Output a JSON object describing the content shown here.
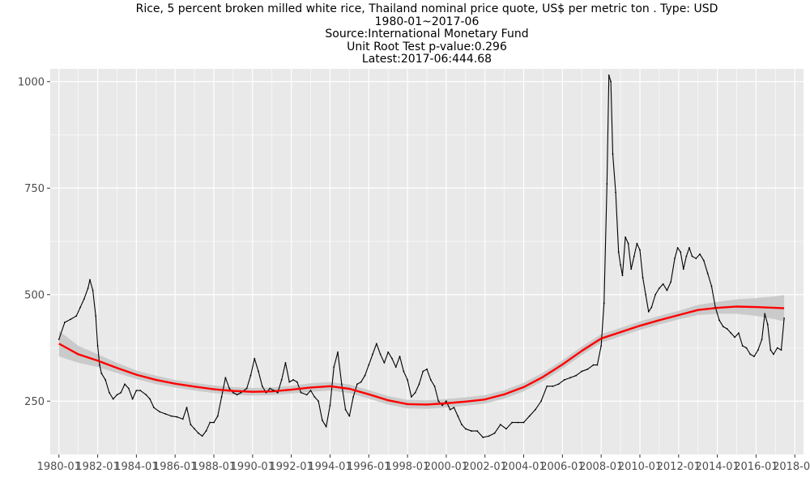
{
  "titles": {
    "line1": "Rice, 5 percent broken milled white rice, Thailand nominal price quote, US$ per metric ton . Type: USD",
    "line2": "1980-01~2017-06",
    "line3": "Source:International Monetary Fund",
    "line4": "Unit Root Test p-value:0.296",
    "line5": "Latest:2017-06:444.68"
  },
  "colors": {
    "panel": "#e9e9e9",
    "grid_major": "#ffffff",
    "series": "#000000",
    "trend": "#ff0000",
    "band": "#c4c4c4"
  },
  "chart_data": {
    "type": "line",
    "title": "Rice, 5 percent broken milled white rice, Thailand nominal price quote, US$ per metric ton . Type: USD",
    "xlabel": "",
    "ylabel": "",
    "xlim": [
      1979.55,
      2018.45
    ],
    "ylim": [
      125,
      1030
    ],
    "grid": true,
    "legend": "none",
    "x_ticks": [
      1980,
      1982,
      1984,
      1986,
      1988,
      1990,
      1992,
      1994,
      1996,
      1998,
      2000,
      2002,
      2004,
      2006,
      2008,
      2010,
      2012,
      2014,
      2016,
      2018
    ],
    "x_tick_labels": [
      "1980-01",
      "1982-01",
      "1984-01",
      "1986-01",
      "1988-01",
      "1990-01",
      "1992-01",
      "1994-01",
      "1996-01",
      "1998-01",
      "2000-01",
      "2002-01",
      "2004-01",
      "2006-01",
      "2008-01",
      "2010-01",
      "2012-01",
      "2014-01",
      "2016-01",
      "2018-01"
    ],
    "y_ticks": [
      250,
      500,
      750,
      1000
    ],
    "y_tick_labels": [
      "250",
      "500",
      "750",
      "1000"
    ],
    "series": [
      {
        "type": "line",
        "values": [
          [
            1980.0,
            395
          ],
          [
            1980.3,
            435
          ],
          [
            1980.6,
            442
          ],
          [
            1980.9,
            450
          ],
          [
            1981.1,
            470
          ],
          [
            1981.3,
            490
          ],
          [
            1981.5,
            515
          ],
          [
            1981.6,
            535
          ],
          [
            1981.75,
            510
          ],
          [
            1981.9,
            450
          ],
          [
            1982.0,
            380
          ],
          [
            1982.1,
            335
          ],
          [
            1982.2,
            315
          ],
          [
            1982.4,
            300
          ],
          [
            1982.6,
            270
          ],
          [
            1982.8,
            255
          ],
          [
            1983.0,
            265
          ],
          [
            1983.2,
            270
          ],
          [
            1983.4,
            290
          ],
          [
            1983.6,
            280
          ],
          [
            1983.8,
            255
          ],
          [
            1984.0,
            275
          ],
          [
            1984.2,
            275
          ],
          [
            1984.5,
            265
          ],
          [
            1984.7,
            255
          ],
          [
            1984.9,
            235
          ],
          [
            1985.2,
            225
          ],
          [
            1985.5,
            220
          ],
          [
            1985.8,
            215
          ],
          [
            1986.1,
            213
          ],
          [
            1986.4,
            208
          ],
          [
            1986.6,
            235
          ],
          [
            1986.8,
            195
          ],
          [
            1987.0,
            185
          ],
          [
            1987.2,
            175
          ],
          [
            1987.4,
            168
          ],
          [
            1987.6,
            180
          ],
          [
            1987.8,
            200
          ],
          [
            1988.0,
            200
          ],
          [
            1988.2,
            215
          ],
          [
            1988.4,
            260
          ],
          [
            1988.6,
            305
          ],
          [
            1988.8,
            280
          ],
          [
            1989.0,
            270
          ],
          [
            1989.2,
            265
          ],
          [
            1989.4,
            270
          ],
          [
            1989.7,
            280
          ],
          [
            1989.9,
            310
          ],
          [
            1990.1,
            350
          ],
          [
            1990.3,
            320
          ],
          [
            1990.5,
            285
          ],
          [
            1990.7,
            270
          ],
          [
            1990.9,
            280
          ],
          [
            1991.1,
            275
          ],
          [
            1991.3,
            270
          ],
          [
            1991.5,
            300
          ],
          [
            1991.7,
            340
          ],
          [
            1991.9,
            295
          ],
          [
            1992.1,
            300
          ],
          [
            1992.3,
            295
          ],
          [
            1992.5,
            270
          ],
          [
            1992.8,
            265
          ],
          [
            1993.0,
            275
          ],
          [
            1993.2,
            260
          ],
          [
            1993.4,
            250
          ],
          [
            1993.6,
            205
          ],
          [
            1993.8,
            190
          ],
          [
            1994.0,
            240
          ],
          [
            1994.2,
            330
          ],
          [
            1994.4,
            365
          ],
          [
            1994.6,
            290
          ],
          [
            1994.8,
            230
          ],
          [
            1995.0,
            215
          ],
          [
            1995.2,
            260
          ],
          [
            1995.4,
            290
          ],
          [
            1995.6,
            295
          ],
          [
            1995.8,
            310
          ],
          [
            1996.0,
            335
          ],
          [
            1996.2,
            360
          ],
          [
            1996.4,
            385
          ],
          [
            1996.6,
            360
          ],
          [
            1996.8,
            340
          ],
          [
            1997.0,
            365
          ],
          [
            1997.2,
            350
          ],
          [
            1997.4,
            330
          ],
          [
            1997.6,
            355
          ],
          [
            1997.8,
            320
          ],
          [
            1998.0,
            300
          ],
          [
            1998.2,
            260
          ],
          [
            1998.4,
            270
          ],
          [
            1998.6,
            290
          ],
          [
            1998.8,
            320
          ],
          [
            1999.0,
            325
          ],
          [
            1999.2,
            300
          ],
          [
            1999.4,
            285
          ],
          [
            1999.6,
            250
          ],
          [
            1999.8,
            240
          ],
          [
            2000.0,
            250
          ],
          [
            2000.2,
            230
          ],
          [
            2000.4,
            235
          ],
          [
            2000.6,
            215
          ],
          [
            2000.8,
            195
          ],
          [
            2001.0,
            185
          ],
          [
            2001.3,
            180
          ],
          [
            2001.6,
            180
          ],
          [
            2001.9,
            165
          ],
          [
            2002.2,
            168
          ],
          [
            2002.5,
            175
          ],
          [
            2002.8,
            195
          ],
          [
            2003.1,
            185
          ],
          [
            2003.4,
            200
          ],
          [
            2003.7,
            200
          ],
          [
            2004.0,
            200
          ],
          [
            2004.3,
            215
          ],
          [
            2004.6,
            230
          ],
          [
            2004.9,
            250
          ],
          [
            2005.2,
            285
          ],
          [
            2005.5,
            285
          ],
          [
            2005.8,
            290
          ],
          [
            2006.1,
            300
          ],
          [
            2006.4,
            305
          ],
          [
            2006.7,
            310
          ],
          [
            2007.0,
            320
          ],
          [
            2007.3,
            325
          ],
          [
            2007.6,
            335
          ],
          [
            2007.8,
            335
          ],
          [
            2008.0,
            380
          ],
          [
            2008.15,
            480
          ],
          [
            2008.3,
            760
          ],
          [
            2008.4,
            1015
          ],
          [
            2008.5,
            1000
          ],
          [
            2008.6,
            830
          ],
          [
            2008.75,
            740
          ],
          [
            2008.9,
            600
          ],
          [
            2009.0,
            570
          ],
          [
            2009.1,
            545
          ],
          [
            2009.25,
            635
          ],
          [
            2009.4,
            620
          ],
          [
            2009.55,
            560
          ],
          [
            2009.7,
            590
          ],
          [
            2009.85,
            620
          ],
          [
            2010.0,
            605
          ],
          [
            2010.15,
            540
          ],
          [
            2010.3,
            500
          ],
          [
            2010.45,
            460
          ],
          [
            2010.6,
            470
          ],
          [
            2010.8,
            500
          ],
          [
            2011.0,
            515
          ],
          [
            2011.2,
            525
          ],
          [
            2011.4,
            510
          ],
          [
            2011.6,
            530
          ],
          [
            2011.8,
            585
          ],
          [
            2011.95,
            610
          ],
          [
            2012.1,
            600
          ],
          [
            2012.25,
            560
          ],
          [
            2012.4,
            590
          ],
          [
            2012.55,
            610
          ],
          [
            2012.7,
            590
          ],
          [
            2012.9,
            585
          ],
          [
            2013.1,
            595
          ],
          [
            2013.3,
            580
          ],
          [
            2013.5,
            550
          ],
          [
            2013.7,
            520
          ],
          [
            2013.9,
            470
          ],
          [
            2014.1,
            440
          ],
          [
            2014.3,
            425
          ],
          [
            2014.5,
            420
          ],
          [
            2014.7,
            410
          ],
          [
            2014.9,
            400
          ],
          [
            2015.1,
            410
          ],
          [
            2015.3,
            380
          ],
          [
            2015.5,
            375
          ],
          [
            2015.7,
            360
          ],
          [
            2015.9,
            355
          ],
          [
            2016.1,
            370
          ],
          [
            2016.3,
            395
          ],
          [
            2016.45,
            455
          ],
          [
            2016.6,
            430
          ],
          [
            2016.75,
            370
          ],
          [
            2016.9,
            360
          ],
          [
            2017.1,
            375
          ],
          [
            2017.3,
            370
          ],
          [
            2017.45,
            444.68
          ]
        ]
      },
      {
        "type": "smooth",
        "values": [
          [
            1980,
            385
          ],
          [
            1981,
            360
          ],
          [
            1982,
            345
          ],
          [
            1983,
            328
          ],
          [
            1984,
            312
          ],
          [
            1985,
            300
          ],
          [
            1986,
            291
          ],
          [
            1987,
            284
          ],
          [
            1988,
            278
          ],
          [
            1989,
            274
          ],
          [
            1990,
            272
          ],
          [
            1991,
            273
          ],
          [
            1992,
            277
          ],
          [
            1993,
            282
          ],
          [
            1994,
            285
          ],
          [
            1995,
            279
          ],
          [
            1996,
            266
          ],
          [
            1997,
            252
          ],
          [
            1998,
            243
          ],
          [
            1999,
            242
          ],
          [
            2000,
            245
          ],
          [
            2001,
            249
          ],
          [
            2002,
            254
          ],
          [
            2003,
            266
          ],
          [
            2004,
            283
          ],
          [
            2005,
            307
          ],
          [
            2006,
            336
          ],
          [
            2007,
            368
          ],
          [
            2008,
            397
          ],
          [
            2009,
            412
          ],
          [
            2010,
            427
          ],
          [
            2011,
            440
          ],
          [
            2012,
            452
          ],
          [
            2013,
            464
          ],
          [
            2014,
            469
          ],
          [
            2015,
            472
          ],
          [
            2016,
            471
          ],
          [
            2017,
            469
          ],
          [
            2017.45,
            468
          ]
        ],
        "band_lower": [
          [
            1980,
            355
          ],
          [
            1981,
            340
          ],
          [
            1982,
            330
          ],
          [
            1983,
            316
          ],
          [
            1984,
            302
          ],
          [
            1985,
            290
          ],
          [
            1986,
            282
          ],
          [
            1987,
            275
          ],
          [
            1988,
            269
          ],
          [
            1989,
            265
          ],
          [
            1990,
            263
          ],
          [
            1991,
            264
          ],
          [
            1992,
            268
          ],
          [
            1993,
            272
          ],
          [
            1994,
            275
          ],
          [
            1995,
            269
          ],
          [
            1996,
            256
          ],
          [
            1997,
            242
          ],
          [
            1998,
            233
          ],
          [
            1999,
            232
          ],
          [
            2000,
            235
          ],
          [
            2001,
            239
          ],
          [
            2002,
            244
          ],
          [
            2003,
            256
          ],
          [
            2004,
            273
          ],
          [
            2005,
            297
          ],
          [
            2006,
            326
          ],
          [
            2007,
            358
          ],
          [
            2008,
            387
          ],
          [
            2009,
            402
          ],
          [
            2010,
            417
          ],
          [
            2011,
            430
          ],
          [
            2012,
            442
          ],
          [
            2013,
            452
          ],
          [
            2014,
            455
          ],
          [
            2015,
            455
          ],
          [
            2016,
            450
          ],
          [
            2017,
            442
          ],
          [
            2017.45,
            437
          ]
        ],
        "band_upper": [
          [
            1980,
            415
          ],
          [
            1981,
            380
          ],
          [
            1982,
            360
          ],
          [
            1983,
            340
          ],
          [
            1984,
            322
          ],
          [
            1985,
            310
          ],
          [
            1986,
            300
          ],
          [
            1987,
            293
          ],
          [
            1988,
            287
          ],
          [
            1989,
            283
          ],
          [
            1990,
            281
          ],
          [
            1991,
            282
          ],
          [
            1992,
            286
          ],
          [
            1993,
            292
          ],
          [
            1994,
            295
          ],
          [
            1995,
            289
          ],
          [
            1996,
            276
          ],
          [
            1997,
            262
          ],
          [
            1998,
            253
          ],
          [
            1999,
            252
          ],
          [
            2000,
            255
          ],
          [
            2001,
            259
          ],
          [
            2002,
            264
          ],
          [
            2003,
            276
          ],
          [
            2004,
            293
          ],
          [
            2005,
            317
          ],
          [
            2006,
            346
          ],
          [
            2007,
            378
          ],
          [
            2008,
            407
          ],
          [
            2009,
            422
          ],
          [
            2010,
            437
          ],
          [
            2011,
            450
          ],
          [
            2012,
            462
          ],
          [
            2013,
            476
          ],
          [
            2014,
            483
          ],
          [
            2015,
            489
          ],
          [
            2016,
            492
          ],
          [
            2017,
            496
          ],
          [
            2017.45,
            499
          ]
        ]
      }
    ]
  }
}
